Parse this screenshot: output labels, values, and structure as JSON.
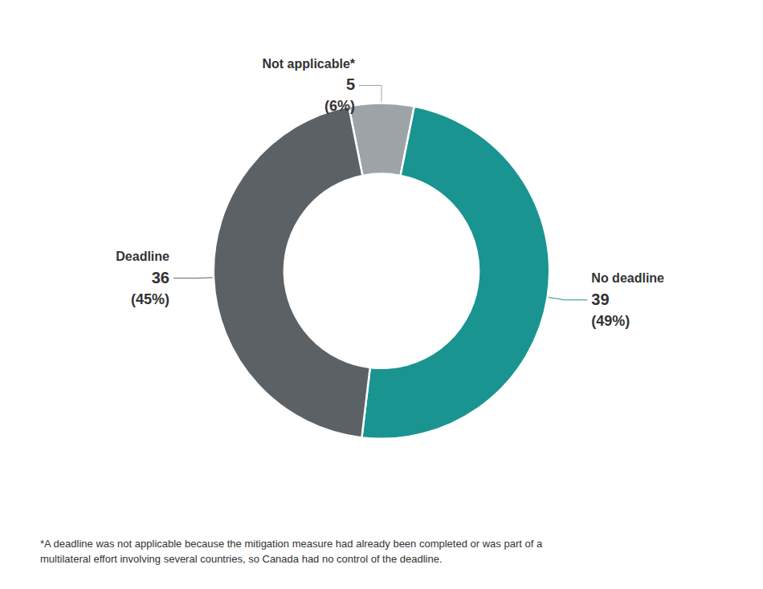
{
  "chart_data": {
    "type": "donut",
    "categories": [
      "Not applicable*",
      "No deadline",
      "Deadline"
    ],
    "values": [
      5,
      39,
      36
    ],
    "colors": [
      "#9ea3a8",
      "#1a9490",
      "#5c6166"
    ],
    "shares": [
      6,
      49,
      45
    ],
    "share_labels": [
      "(6%)",
      "(49%)",
      "(45%)"
    ],
    "data_labels": true,
    "annotation": "*A deadline was not applicable because the mitigation measure had already been completed or was part of a\nmultilateral effort involving several countries, so Canada had no control of the deadline."
  }
}
